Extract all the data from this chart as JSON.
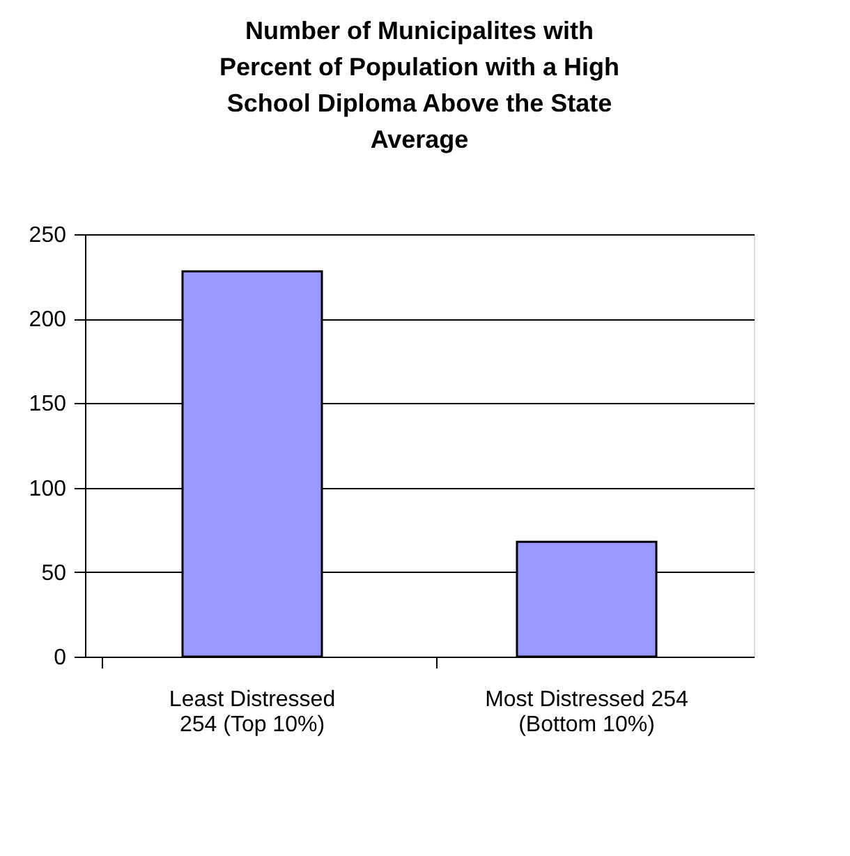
{
  "chart_data": {
    "type": "bar",
    "title": "Number of Municipalites with Percent of Population with a High School Diploma Above the State Average",
    "categories": [
      "Least Distressed 254 (Top 10%)",
      "Most Distressed 254 (Bottom 10%)"
    ],
    "values": [
      228,
      68
    ],
    "color": "#9999ff",
    "ylim": [
      0,
      250
    ],
    "yticks": [
      0,
      50,
      100,
      150,
      200,
      250
    ],
    "grid": "y"
  }
}
